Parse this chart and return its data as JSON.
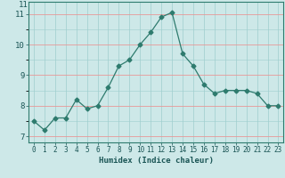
{
  "x": [
    0,
    1,
    2,
    3,
    4,
    5,
    6,
    7,
    8,
    9,
    10,
    11,
    12,
    13,
    14,
    15,
    16,
    17,
    18,
    19,
    20,
    21,
    22,
    23
  ],
  "y": [
    7.5,
    7.2,
    7.6,
    7.6,
    8.2,
    7.9,
    8.0,
    8.6,
    9.3,
    9.5,
    10.0,
    10.4,
    10.9,
    11.05,
    9.7,
    9.3,
    8.7,
    8.4,
    8.5,
    8.5,
    8.5,
    8.4,
    8.0,
    8.0
  ],
  "xlabel": "Humidex (Indice chaleur)",
  "xlim": [
    -0.5,
    23.5
  ],
  "ylim": [
    6.8,
    11.4
  ],
  "yticks": [
    7,
    8,
    9,
    10,
    11
  ],
  "line_color": "#2e7b6e",
  "marker": "D",
  "marker_size": 2.5,
  "bg_color": "#cde8e8",
  "grid_color_red": "#e89898",
  "grid_color_teal": "#9ecece"
}
